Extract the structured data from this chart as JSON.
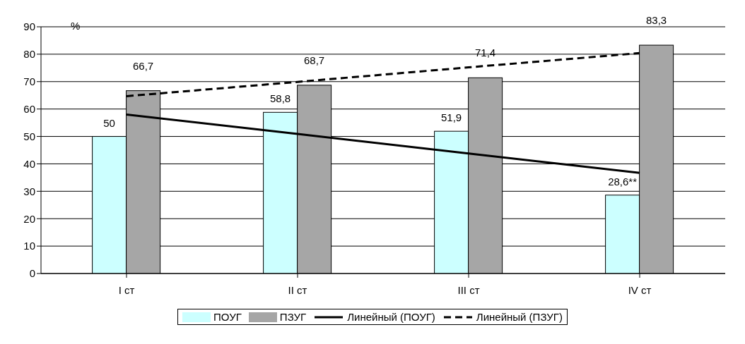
{
  "chart_data": {
    "type": "bar",
    "categories": [
      "I ст",
      "II ст",
      "III ст",
      "IV ст"
    ],
    "series": [
      {
        "name": "ПОУГ",
        "color": "#ccffff",
        "values": [
          50,
          58.8,
          51.9,
          28.6
        ],
        "value_labels": [
          "50",
          "58,8",
          "51,9",
          "28,6**"
        ]
      },
      {
        "name": "ПЗУГ",
        "color": "#a6a6a6",
        "values": [
          66.7,
          68.7,
          71.4,
          83.3
        ],
        "value_labels": [
          "66,7",
          "68,7",
          "71,4",
          "83,3"
        ]
      },
      {
        "name": "Линейный (ПОУГ)",
        "type": "line",
        "color": "#000000",
        "line_style": "solid",
        "values": [
          58,
          50.9,
          43.8,
          36.7
        ]
      },
      {
        "name": "Линейный (ПЗУГ)",
        "type": "line",
        "color": "#000000",
        "line_style": "dashed",
        "values": [
          64.7,
          69.9,
          75.2,
          80.4
        ]
      }
    ],
    "ylim": [
      0,
      90
    ],
    "yticks": [
      0,
      10,
      20,
      30,
      40,
      50,
      60,
      70,
      80,
      90
    ],
    "grid": "y",
    "legend": "bottom",
    "marker": "none",
    "annotations": [
      "%"
    ]
  }
}
